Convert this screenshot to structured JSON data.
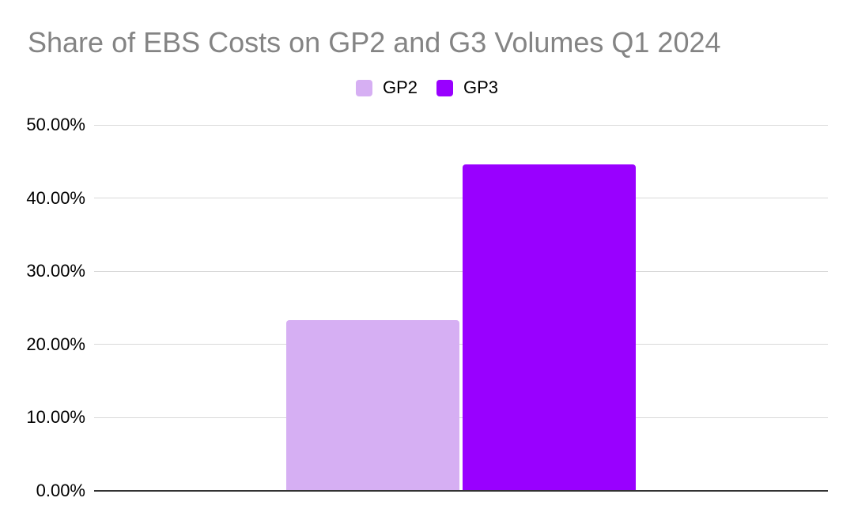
{
  "chart_data": {
    "type": "bar",
    "title": "Share of EBS Costs on GP2 and G3 Volumes Q1 2024",
    "categories": [
      ""
    ],
    "series": [
      {
        "name": "GP2",
        "values": [
          23.33
        ],
        "color": "#d6aff3"
      },
      {
        "name": "GP3",
        "values": [
          44.55
        ],
        "color": "#9900ff"
      }
    ],
    "xlabel": "",
    "ylabel": "",
    "ylim": [
      0,
      50
    ],
    "yticks": [
      {
        "value": 0,
        "label": "0.00%"
      },
      {
        "value": 10,
        "label": "10.00%"
      },
      {
        "value": 20,
        "label": "20.00%"
      },
      {
        "value": 30,
        "label": "30.00%"
      },
      {
        "value": 40,
        "label": "40.00%"
      },
      {
        "value": 50,
        "label": "50.00%"
      }
    ],
    "grid": true,
    "legend_position": "top-center",
    "colors": {
      "title_text": "#848484",
      "tick_label_text": "#000000",
      "legend_label_text": "#000000",
      "gridline": "#d9d9d9",
      "axis_line": "#333333",
      "background": "#ffffff"
    }
  }
}
